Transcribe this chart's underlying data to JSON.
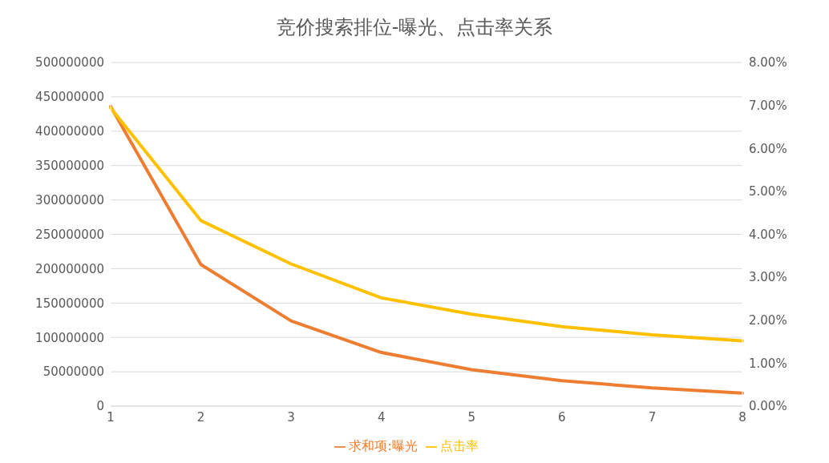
{
  "chart_data": {
    "type": "line",
    "title": "竞价搜索排位-曝光、点击率关系",
    "categories": [
      "1",
      "2",
      "3",
      "4",
      "5",
      "6",
      "7",
      "8"
    ],
    "series": [
      {
        "name": "求和项:曝光",
        "color": "#ed7d31",
        "values": [
          436000000,
          206000000,
          124000000,
          78000000,
          53000000,
          37000000,
          26500000,
          19000000
        ]
      },
      {
        "name": "点击率",
        "color": "#ffc000",
        "axis": "y2",
        "values": [
          6.94,
          4.32,
          3.31,
          2.52,
          2.14,
          1.85,
          1.66,
          1.52
        ]
      }
    ],
    "ylim": [
      0,
      500000000
    ],
    "yticks": [
      0,
      50000000,
      100000000,
      150000000,
      200000000,
      250000000,
      300000000,
      350000000,
      400000000,
      450000000,
      500000000
    ],
    "y2lim": [
      0,
      8
    ],
    "y2ticks": [
      {
        "value": 0,
        "label": "0.00%"
      },
      {
        "value": 1,
        "label": "1.00%"
      },
      {
        "value": 2,
        "label": "2.00%"
      },
      {
        "value": 3,
        "label": "3.00%"
      },
      {
        "value": 4,
        "label": "4.00%"
      },
      {
        "value": 5,
        "label": "5.00%"
      },
      {
        "value": 6,
        "label": "6.00%"
      },
      {
        "value": 7,
        "label": "7.00%"
      },
      {
        "value": 8,
        "label": "8.00%"
      }
    ],
    "grid": "y",
    "legend": "bottom",
    "marker": "none",
    "line_style": "solid"
  }
}
